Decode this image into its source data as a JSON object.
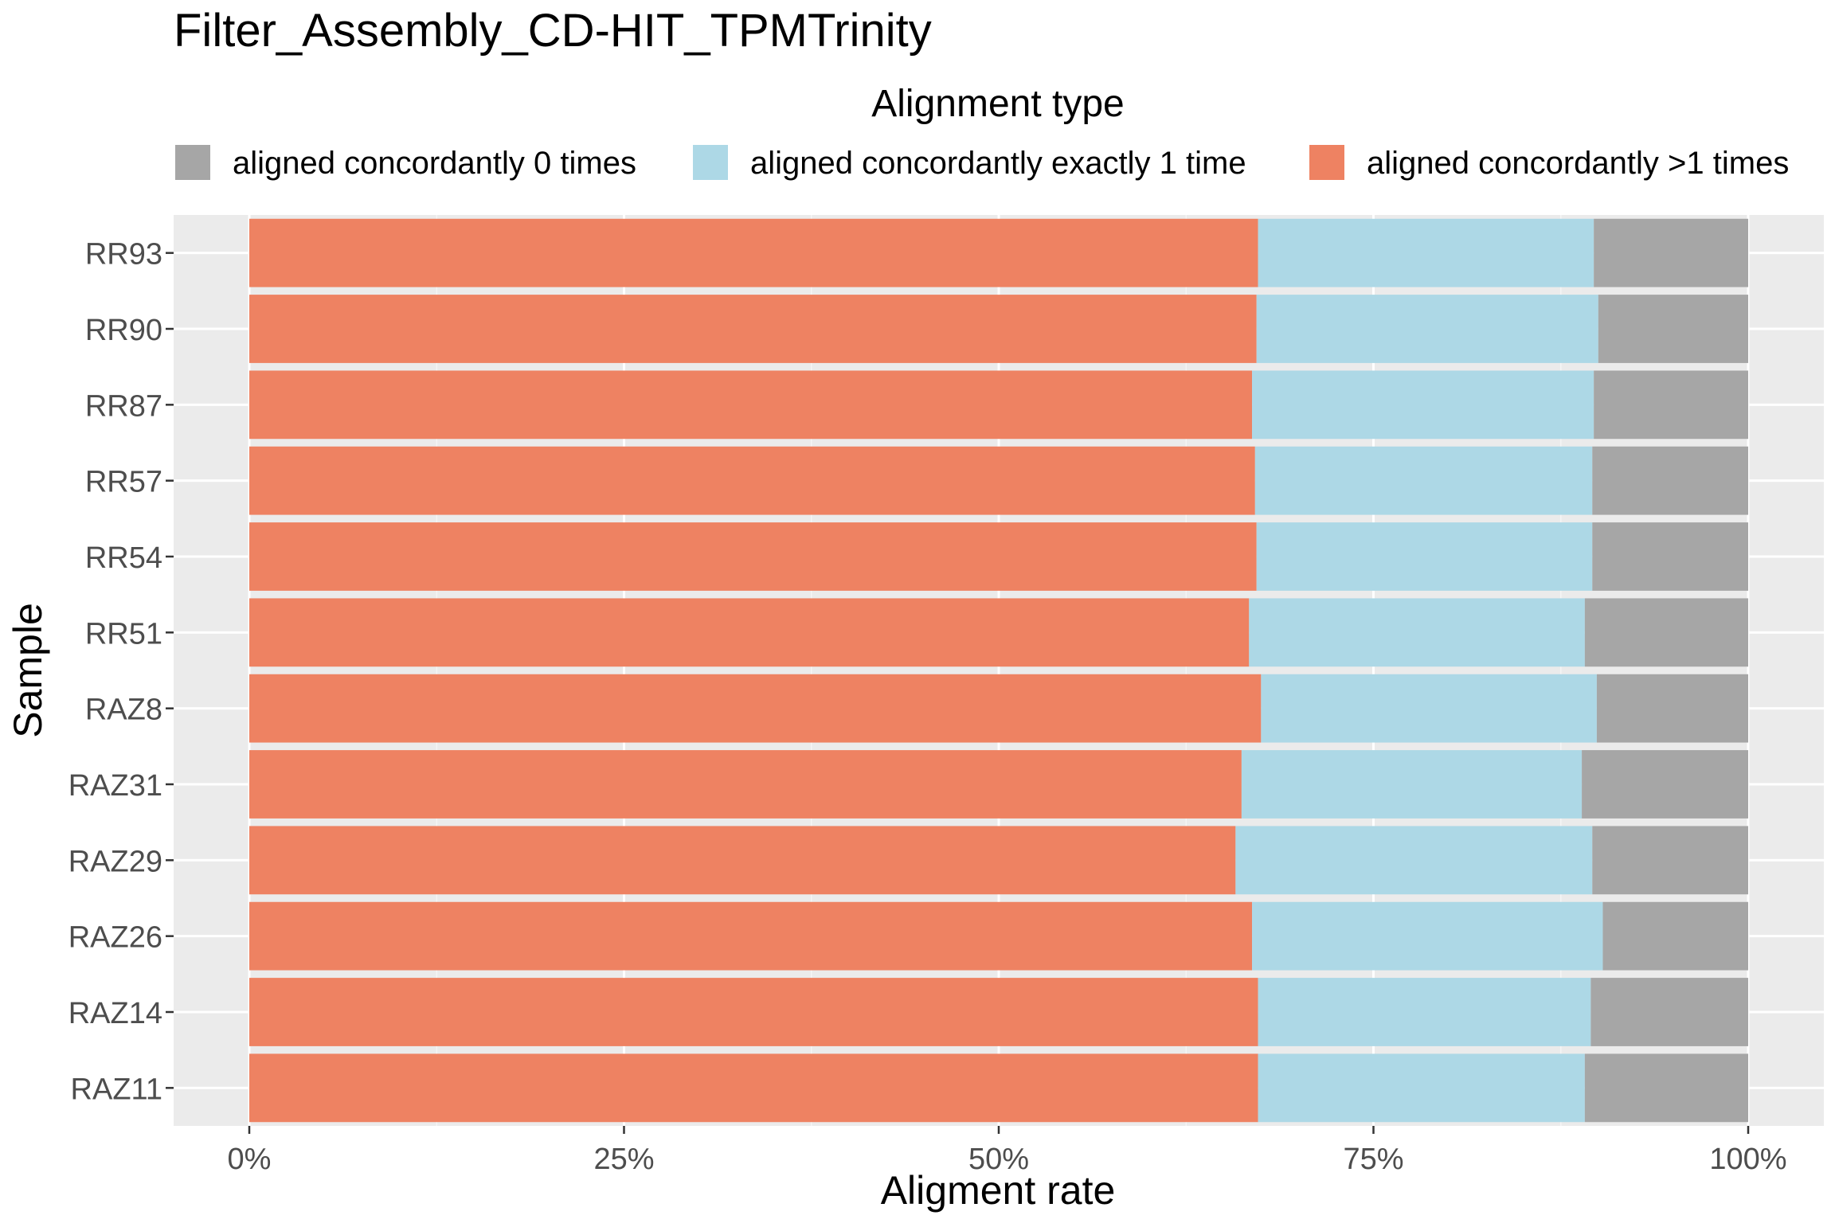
{
  "chart_data": {
    "type": "bar",
    "orientation": "horizontal",
    "stacked": true,
    "title": "Filter_Assembly_CD-HIT_TPMTrinity",
    "xlabel": "Aligment rate",
    "ylabel": "Sample",
    "xlim": [
      0,
      1
    ],
    "x_ticks": [
      "0%",
      "25%",
      "50%",
      "75%",
      "100%"
    ],
    "x_tick_values": [
      0,
      0.25,
      0.5,
      0.75,
      1.0
    ],
    "grid": true,
    "legend": {
      "title": "Alignment type",
      "position": "top",
      "entries": [
        {
          "label": "aligned concordantly 0 times",
          "color": "#a6a6a6"
        },
        {
          "label": "aligned concordantly exactly 1 time",
          "color": "#add8e6"
        },
        {
          "label": "aligned concordantly >1 times",
          "color": "#ee8262"
        }
      ]
    },
    "categories": [
      "RR93",
      "RR90",
      "RR87",
      "RR57",
      "RR54",
      "RR51",
      "RAZ8",
      "RAZ31",
      "RAZ29",
      "RAZ26",
      "RAZ14",
      "RAZ11"
    ],
    "series": [
      {
        "name": "aligned concordantly >1 times",
        "color": "#ee8262",
        "values": [
          0.673,
          0.672,
          0.669,
          0.671,
          0.672,
          0.667,
          0.675,
          0.662,
          0.658,
          0.669,
          0.673,
          0.673
        ]
      },
      {
        "name": "aligned concordantly exactly 1 time",
        "color": "#add8e6",
        "values": [
          0.224,
          0.228,
          0.228,
          0.225,
          0.224,
          0.224,
          0.224,
          0.227,
          0.238,
          0.234,
          0.222,
          0.218
        ]
      },
      {
        "name": "aligned concordantly 0 times",
        "color": "#a6a6a6",
        "values": [
          0.103,
          0.1,
          0.103,
          0.104,
          0.104,
          0.109,
          0.101,
          0.111,
          0.104,
          0.097,
          0.105,
          0.109
        ]
      }
    ]
  }
}
